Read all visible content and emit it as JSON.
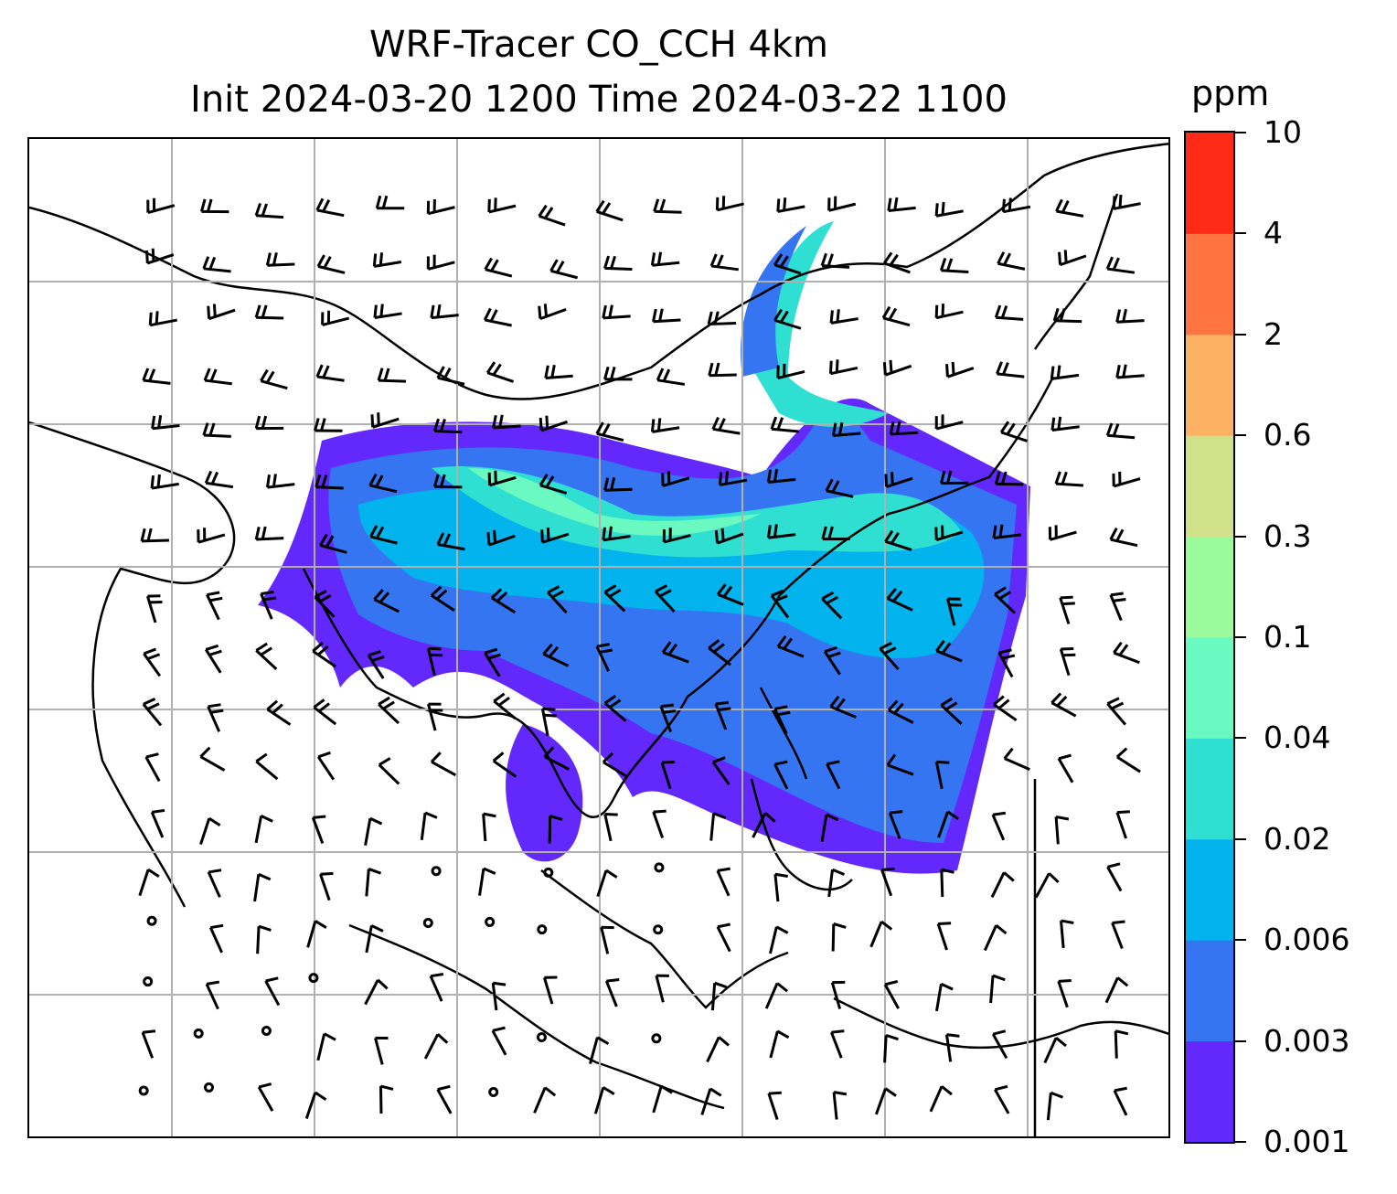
{
  "title": {
    "line1": "WRF-Tracer CO_CCH 4km",
    "line2": "Init 2024-03-20 1200 Time 2024-03-22 1100"
  },
  "colorbar": {
    "unit": "ppm",
    "levels": [
      "0.001",
      "0.003",
      "0.006",
      "0.02",
      "0.04",
      "0.1",
      "0.3",
      "0.6",
      "2",
      "4",
      "10"
    ],
    "colors": [
      "#6329fc",
      "#3675f2",
      "#02b3ed",
      "#2fdfd1",
      "#6af9c1",
      "#9bfa9c",
      "#d0e18a",
      "#fdb162",
      "#ff7440",
      "#ff2b17"
    ]
  },
  "map": {
    "content": "CO tracer concentration plume over East/Southeast Asia with wind barbs and coastlines",
    "gridlines": true
  }
}
